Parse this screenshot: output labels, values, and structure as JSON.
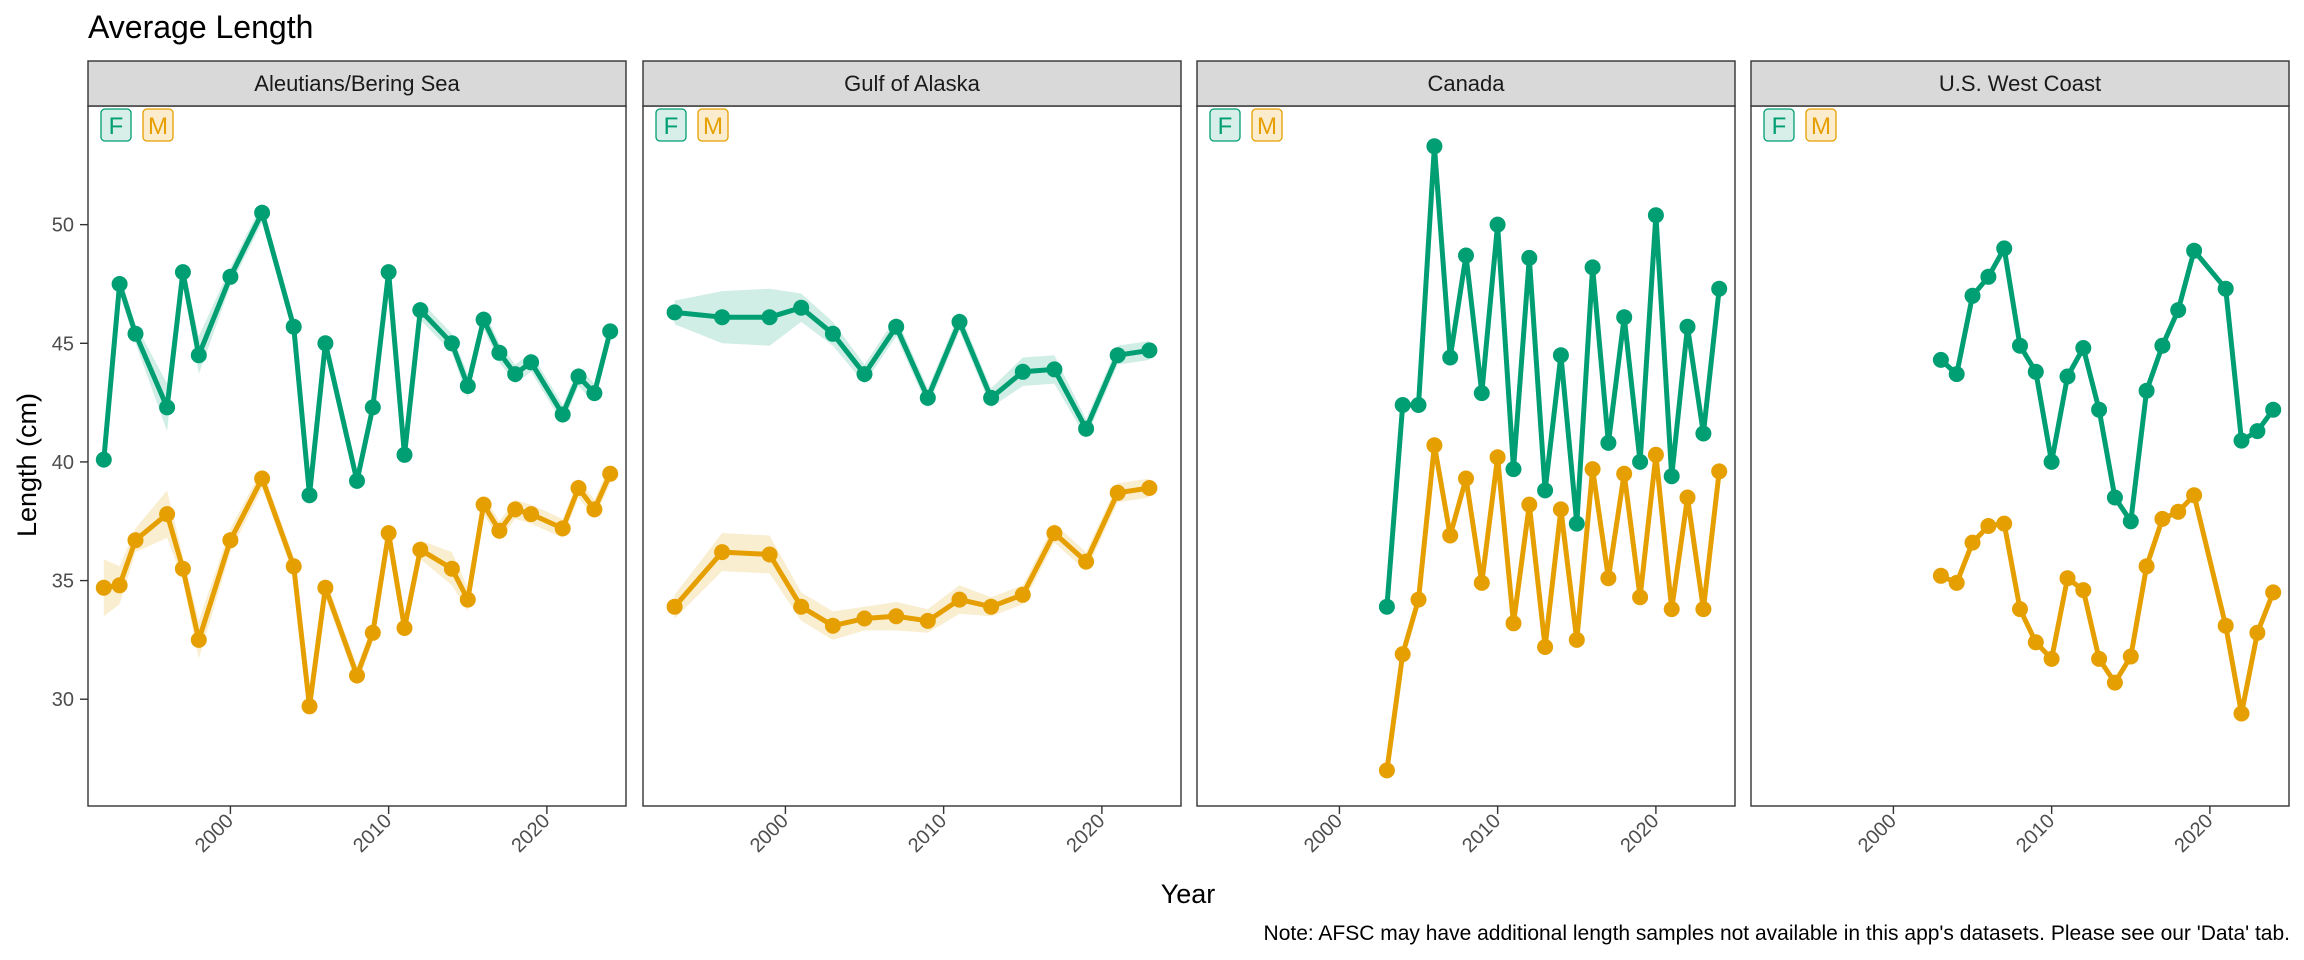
{
  "chart_data": {
    "type": "line",
    "title": "Average Length",
    "xlabel": "Year",
    "ylabel": "Length (cm)",
    "note": "Note: AFSC may have additional length samples not available in this app's datasets. Please see our 'Data' tab.",
    "xlim": [
      1991,
      2025
    ],
    "ylim": [
      25.5,
      55
    ],
    "xticks": [
      2000,
      2010,
      2020
    ],
    "yticks": [
      30,
      35,
      40,
      45,
      50
    ],
    "grid": false,
    "legend_labels": [
      "F",
      "M"
    ],
    "colors": {
      "F": "#009E73",
      "M": "#E69F00",
      "strip_fill": "#d9d9d9",
      "panel_border": "#333333"
    },
    "panels": [
      {
        "name": "Aleutians/Bering Sea",
        "series": [
          {
            "name": "F",
            "x": [
              1992,
              1993,
              1994,
              1996,
              1997,
              1998,
              2000,
              2002,
              2004,
              2005,
              2006,
              2008,
              2009,
              2010,
              2011,
              2012,
              2014,
              2015,
              2016,
              2017,
              2018,
              2019,
              2021,
              2022,
              2023,
              2024
            ],
            "values": [
              40.1,
              47.5,
              45.4,
              42.3,
              48.0,
              44.5,
              47.8,
              50.5,
              45.7,
              38.6,
              45.0,
              39.2,
              42.3,
              48.0,
              40.3,
              46.4,
              45.0,
              43.2,
              46.0,
              44.6,
              43.7,
              44.2,
              42.0,
              43.6,
              42.9,
              45.5
            ],
            "band": [
              0.4,
              0.4,
              0.4,
              1.0,
              0.4,
              0.8,
              0.4,
              0.4,
              0.4,
              0.4,
              0.4,
              0.4,
              0.4,
              0.4,
              0.4,
              0.4,
              0.4,
              0.5,
              0.4,
              0.4,
              0.4,
              0.4,
              0.4,
              0.4,
              0.4,
              0.4
            ]
          },
          {
            "name": "M",
            "x": [
              1992,
              1993,
              1994,
              1996,
              1997,
              1998,
              2000,
              2002,
              2004,
              2005,
              2006,
              2008,
              2009,
              2010,
              2011,
              2012,
              2014,
              2015,
              2016,
              2017,
              2018,
              2019,
              2021,
              2022,
              2023,
              2024
            ],
            "values": [
              34.7,
              34.8,
              36.7,
              37.8,
              35.5,
              32.5,
              36.7,
              39.3,
              35.6,
              29.7,
              34.7,
              31.0,
              32.8,
              37.0,
              33.0,
              36.3,
              35.5,
              34.2,
              38.2,
              37.1,
              38.0,
              37.8,
              37.2,
              38.9,
              38.0,
              39.5
            ],
            "band": [
              1.2,
              0.8,
              0.5,
              1.0,
              0.5,
              0.8,
              0.5,
              0.4,
              0.4,
              0.4,
              0.4,
              0.4,
              0.4,
              0.4,
              0.4,
              0.4,
              0.7,
              0.5,
              0.4,
              0.4,
              0.4,
              0.4,
              0.4,
              0.4,
              0.4,
              0.4
            ]
          }
        ]
      },
      {
        "name": "Gulf of Alaska",
        "series": [
          {
            "name": "F",
            "x": [
              1993,
              1996,
              1999,
              2001,
              2003,
              2005,
              2007,
              2009,
              2011,
              2013,
              2015,
              2017,
              2019,
              2021,
              2023
            ],
            "values": [
              46.3,
              46.1,
              46.1,
              46.5,
              45.4,
              43.7,
              45.7,
              42.7,
              45.9,
              42.7,
              43.8,
              43.9,
              41.4,
              44.5,
              44.7
            ],
            "band": [
              0.5,
              1.1,
              1.2,
              0.6,
              0.5,
              0.4,
              0.4,
              0.4,
              0.4,
              0.4,
              0.6,
              0.6,
              0.4,
              0.4,
              0.4
            ]
          },
          {
            "name": "M",
            "x": [
              1993,
              1996,
              1999,
              2001,
              2003,
              2005,
              2007,
              2009,
              2011,
              2013,
              2015,
              2017,
              2019,
              2021,
              2023
            ],
            "values": [
              33.9,
              36.2,
              36.1,
              33.9,
              33.1,
              33.4,
              33.5,
              33.3,
              34.2,
              33.9,
              34.4,
              37.0,
              35.8,
              38.7,
              38.9
            ],
            "band": [
              0.5,
              0.8,
              0.8,
              0.6,
              0.6,
              0.5,
              0.6,
              0.5,
              0.6,
              0.4,
              0.4,
              0.4,
              0.4,
              0.4,
              0.4
            ]
          }
        ]
      },
      {
        "name": "Canada",
        "series": [
          {
            "name": "F",
            "x": [
              2003,
              2004,
              2005,
              2006,
              2007,
              2008,
              2009,
              2010,
              2011,
              2012,
              2013,
              2014,
              2015,
              2016,
              2017,
              2018,
              2019,
              2020,
              2021,
              2022,
              2023,
              2024
            ],
            "values": [
              33.9,
              42.4,
              42.4,
              53.3,
              44.4,
              48.7,
              42.9,
              50.0,
              39.7,
              48.6,
              38.8,
              44.5,
              37.4,
              48.2,
              40.8,
              46.1,
              40.0,
              50.4,
              39.4,
              45.7,
              41.2,
              47.3
            ]
          },
          {
            "name": "M",
            "x": [
              2003,
              2004,
              2005,
              2006,
              2007,
              2008,
              2009,
              2010,
              2011,
              2012,
              2013,
              2014,
              2015,
              2016,
              2017,
              2018,
              2019,
              2020,
              2021,
              2022,
              2023,
              2024
            ],
            "values": [
              27.0,
              31.9,
              34.2,
              40.7,
              36.9,
              39.3,
              34.9,
              40.2,
              33.2,
              38.2,
              32.2,
              38.0,
              32.5,
              39.7,
              35.1,
              39.5,
              34.3,
              40.3,
              33.8,
              38.5,
              33.8,
              39.6
            ]
          }
        ]
      },
      {
        "name": "U.S. West Coast",
        "series": [
          {
            "name": "F",
            "x": [
              2003,
              2004,
              2005,
              2006,
              2007,
              2008,
              2009,
              2010,
              2011,
              2012,
              2013,
              2014,
              2015,
              2016,
              2017,
              2018,
              2019,
              2021,
              2022,
              2023,
              2024
            ],
            "values": [
              44.3,
              43.7,
              47.0,
              47.8,
              49.0,
              44.9,
              43.8,
              40.0,
              43.6,
              44.8,
              42.2,
              38.5,
              37.5,
              43.0,
              44.9,
              46.4,
              48.9,
              47.3,
              40.9,
              41.3,
              42.2
            ]
          },
          {
            "name": "M",
            "x": [
              2003,
              2004,
              2005,
              2006,
              2007,
              2008,
              2009,
              2010,
              2011,
              2012,
              2013,
              2014,
              2015,
              2016,
              2017,
              2018,
              2019,
              2021,
              2022,
              2023,
              2024
            ],
            "values": [
              35.2,
              34.9,
              36.6,
              37.3,
              37.4,
              33.8,
              32.4,
              31.7,
              35.1,
              34.6,
              31.7,
              30.7,
              31.8,
              35.6,
              37.6,
              37.9,
              38.6,
              33.1,
              29.4,
              32.8,
              34.5
            ]
          }
        ]
      }
    ]
  }
}
